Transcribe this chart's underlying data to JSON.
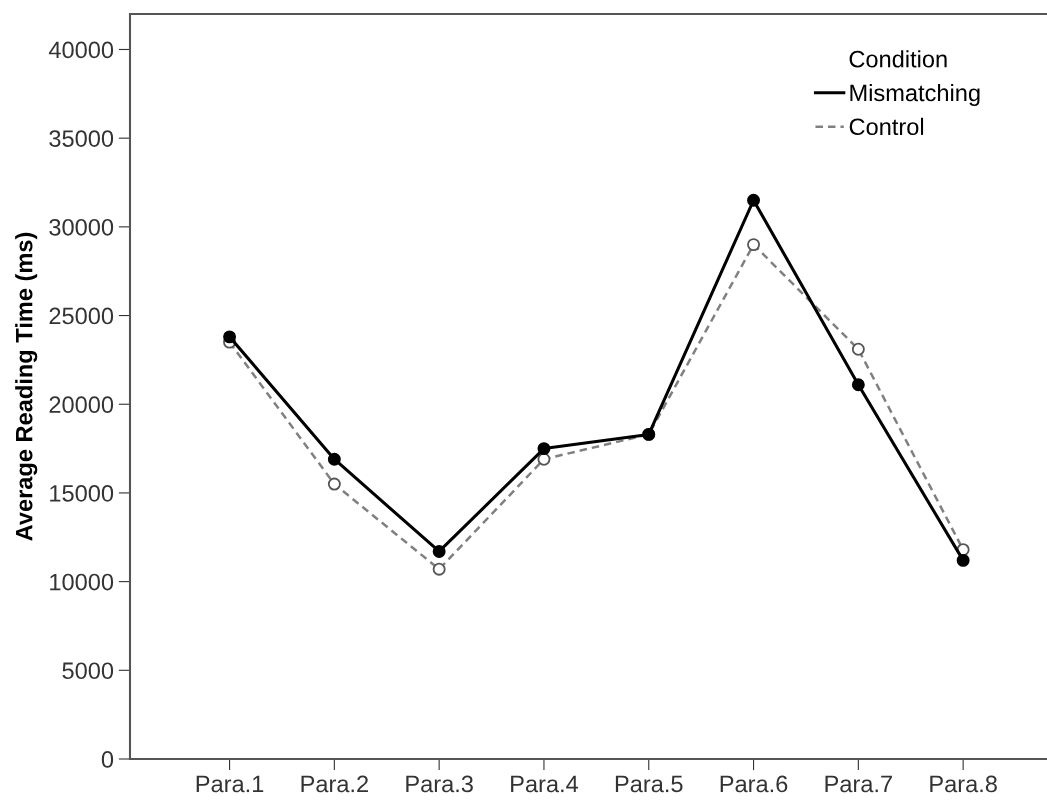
{
  "chart_data": {
    "type": "line",
    "ylabel": "Average Reading Time (ms)",
    "legend_title": "Condition",
    "categories": [
      "Para.1",
      "Para.2",
      "Para.3",
      "Para.4",
      "Para.5",
      "Para.6",
      "Para.7",
      "Para.8"
    ],
    "series": [
      {
        "name": "Mismatching",
        "color": "#000000",
        "line_style": "solid",
        "values": [
          23800,
          16900,
          11700,
          17500,
          18300,
          31500,
          21100,
          11200
        ]
      },
      {
        "name": "Control",
        "color": "#808080",
        "line_style": "dashed",
        "values": [
          23500,
          15500,
          10700,
          16900,
          18300,
          29000,
          23100,
          11800
        ]
      }
    ],
    "ylim": [
      0,
      42000
    ],
    "yticks": [
      0,
      5000,
      10000,
      15000,
      20000,
      25000,
      30000,
      35000,
      40000
    ],
    "marker": "circle",
    "grid": false,
    "legend": "top right"
  }
}
